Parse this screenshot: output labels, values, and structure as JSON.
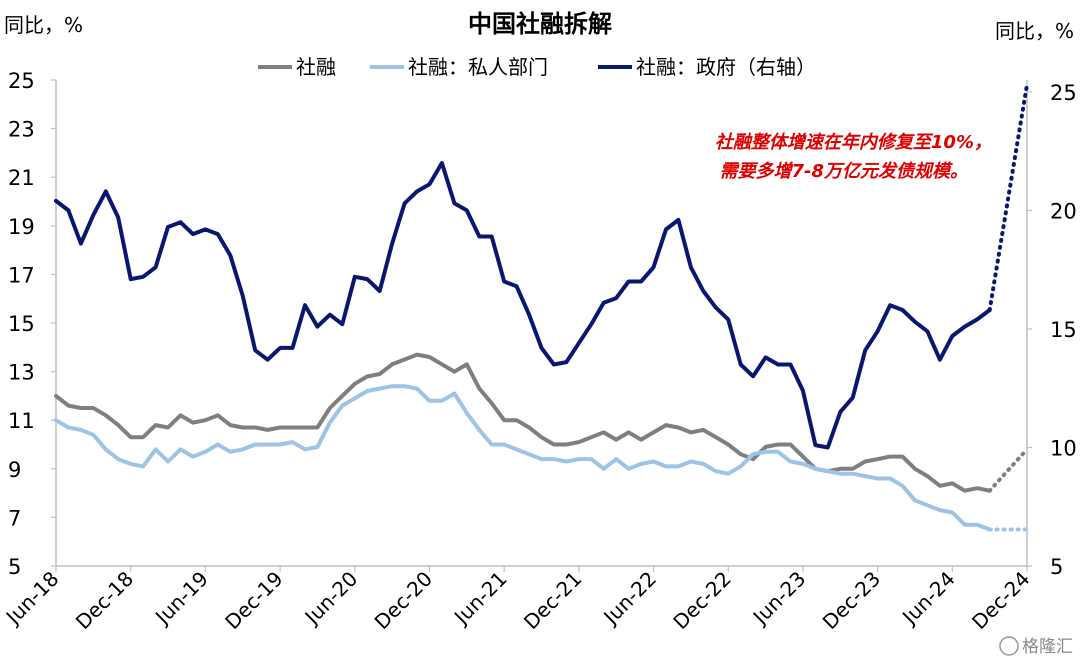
{
  "chart_data": {
    "type": "line",
    "title": "中国社融拆解",
    "left_unit": "同比，%",
    "right_unit": "同比，%",
    "legend_position": "top-center",
    "left_axis": {
      "min": 5,
      "max": 25,
      "ticks": [
        "5",
        "7",
        "9",
        "11",
        "13",
        "15",
        "17",
        "19",
        "21",
        "23",
        "25"
      ]
    },
    "right_axis": {
      "min": 5,
      "max": 25.5,
      "ticks": [
        "5",
        "10",
        "15",
        "20",
        "25"
      ]
    },
    "x_ticks": [
      "Jun-18",
      "Dec-18",
      "Jun-19",
      "Dec-19",
      "Jun-20",
      "Dec-20",
      "Jun-21",
      "Dec-21",
      "Jun-22",
      "Dec-22",
      "Jun-23",
      "Dec-23",
      "Jun-24",
      "Dec-24"
    ],
    "x_start": "2018-06",
    "x_end": "2024-12",
    "series": [
      {
        "name": "社融",
        "axis": "left",
        "color": "#7f7f7f",
        "values": [
          12.0,
          11.6,
          11.5,
          11.5,
          11.2,
          10.8,
          10.3,
          10.3,
          10.8,
          10.7,
          11.2,
          10.9,
          11.0,
          11.2,
          10.8,
          10.7,
          10.7,
          10.6,
          10.7,
          10.7,
          10.7,
          10.7,
          11.5,
          12.0,
          12.5,
          12.8,
          12.9,
          13.3,
          13.5,
          13.7,
          13.6,
          13.3,
          13.0,
          13.3,
          12.3,
          11.7,
          11.0,
          11.0,
          10.7,
          10.3,
          10.0,
          10.0,
          10.1,
          10.3,
          10.5,
          10.2,
          10.5,
          10.2,
          10.5,
          10.8,
          10.7,
          10.5,
          10.6,
          10.3,
          10.0,
          9.6,
          9.4,
          9.9,
          10.0,
          10.0,
          9.5,
          9.0,
          8.9,
          9.0,
          9.0,
          9.3,
          9.4,
          9.5,
          9.5,
          9.0,
          8.7,
          8.3,
          8.4,
          8.1,
          8.2,
          8.1
        ],
        "projection": [
          8.1,
          9.8
        ]
      },
      {
        "name": "社融：私人部门",
        "axis": "left",
        "color": "#9dc3e6",
        "values": [
          11.0,
          10.7,
          10.6,
          10.4,
          9.8,
          9.4,
          9.2,
          9.1,
          9.8,
          9.3,
          9.8,
          9.5,
          9.7,
          10.0,
          9.7,
          9.8,
          10.0,
          10.0,
          10.0,
          10.1,
          9.8,
          9.9,
          10.9,
          11.6,
          11.9,
          12.2,
          12.3,
          12.4,
          12.4,
          12.3,
          11.8,
          11.8,
          12.1,
          11.3,
          10.6,
          10.0,
          10.0,
          9.8,
          9.6,
          9.4,
          9.4,
          9.3,
          9.4,
          9.4,
          9.0,
          9.4,
          9.0,
          9.2,
          9.3,
          9.1,
          9.1,
          9.3,
          9.2,
          8.9,
          8.8,
          9.1,
          9.6,
          9.7,
          9.7,
          9.3,
          9.2,
          9.0,
          8.9,
          8.8,
          8.8,
          8.7,
          8.6,
          8.6,
          8.3,
          7.7,
          7.5,
          7.3,
          7.2,
          6.7,
          6.7,
          6.5
        ],
        "projection": [
          6.5,
          6.5
        ]
      },
      {
        "name": "社融：政府（右轴）",
        "axis": "right",
        "color": "#0a1670",
        "values": [
          20.4,
          20.0,
          18.6,
          19.8,
          20.8,
          19.7,
          17.1,
          17.2,
          17.6,
          19.3,
          19.5,
          19.0,
          19.2,
          19.0,
          18.1,
          16.4,
          14.1,
          13.7,
          14.2,
          14.2,
          16.0,
          15.1,
          15.6,
          15.2,
          17.2,
          17.1,
          16.6,
          18.6,
          20.3,
          20.8,
          21.1,
          22.0,
          20.3,
          20.0,
          18.9,
          18.9,
          17.0,
          16.8,
          15.6,
          14.2,
          13.5,
          13.6,
          14.4,
          15.2,
          16.1,
          16.3,
          17.0,
          17.0,
          17.6,
          19.2,
          19.6,
          17.6,
          16.6,
          15.9,
          15.4,
          13.5,
          13.0,
          13.8,
          13.5,
          13.5,
          12.4,
          10.1,
          10.0,
          11.5,
          12.1,
          14.1,
          14.9,
          16.0,
          15.8,
          15.3,
          14.9,
          13.7,
          14.7,
          15.1,
          15.4,
          15.8
        ],
        "projection": [
          15.8,
          25.3
        ]
      }
    ],
    "annotation": [
      "社融整体增速在年内修复至10%，",
      "需要多增7-8万亿元发债规模。"
    ]
  },
  "watermark": "格隆汇"
}
